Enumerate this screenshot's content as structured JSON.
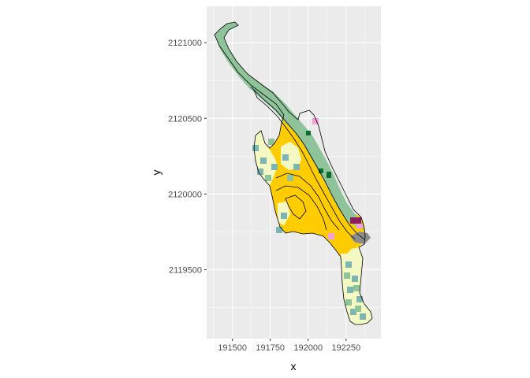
{
  "chart_data": {
    "type": "map",
    "xlabel": "x",
    "ylabel": "y",
    "x_ticks": [
      191500,
      191750,
      192000,
      192250
    ],
    "y_ticks": [
      2119500,
      2120000,
      2120500,
      2121000
    ],
    "x_tick_labels": [
      "191500",
      "191750",
      "192000",
      "192250"
    ],
    "y_tick_labels": [
      "2119500",
      "2120000",
      "2120500",
      "2121000"
    ],
    "xlim": [
      191330,
      192480
    ],
    "ylim": [
      2119045,
      2121240
    ],
    "grid": true,
    "legend": "none",
    "panel_background": "#EBEBEB",
    "gridline_color": "#FFFFFF",
    "raster_colors": {
      "yellow": "#FFCC00",
      "green": "#8FC49B",
      "pale": "#F4F9C4",
      "teal": "#7FB5B0",
      "pink": "#F0A2D8",
      "purple": "#8B1D5A",
      "darkgreen": "#0E6B2E",
      "gray": "#8C8C8C"
    }
  }
}
